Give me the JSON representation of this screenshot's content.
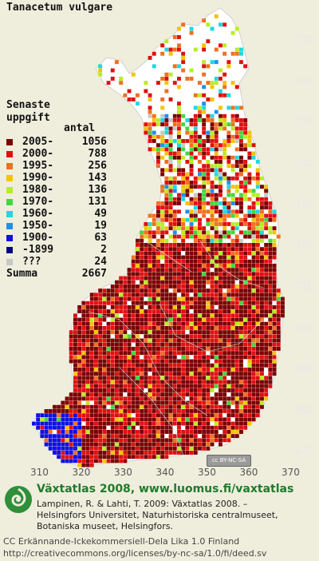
{
  "map": {
    "title": "Tanacetum vulgare",
    "legend_heading_1": "Senaste",
    "legend_heading_2": "uppgift",
    "legend_count_heading": "antal",
    "legend": [
      {
        "period": "2005-",
        "count": "1056",
        "color": "#7a0000"
      },
      {
        "period": "2000-",
        "count": "788",
        "color": "#e01010"
      },
      {
        "period": "1995-",
        "count": "256",
        "color": "#f07020"
      },
      {
        "period": "1990-",
        "count": "143",
        "color": "#f4c400"
      },
      {
        "period": "1980-",
        "count": "136",
        "color": "#b8ee20"
      },
      {
        "period": "1970-",
        "count": "131",
        "color": "#40d840"
      },
      {
        "period": "1960-",
        "count": "49",
        "color": "#20d8e0"
      },
      {
        "period": "1950-",
        "count": "19",
        "color": "#2090f0"
      },
      {
        "period": "1900-",
        "count": "63",
        "color": "#1010e0"
      },
      {
        "period": "-1899",
        "count": "2",
        "color": "#000080"
      },
      {
        "period": "???",
        "count": "24",
        "color": "#c8c8c8"
      }
    ],
    "summa_label": "Summa",
    "summa_count": "2667",
    "y_ticks": [
      "770",
      "760",
      "750",
      "740",
      "730",
      "720",
      "710",
      "700",
      "690",
      "680",
      "670"
    ],
    "x_ticks": [
      "310",
      "320",
      "330",
      "340",
      "350",
      "360",
      "370"
    ],
    "cc_badge": "BY-NC-SA",
    "cc_badge_sign": "cc"
  },
  "footer": {
    "title": "Växtatlas 2008, www.luomus.fi/vaxtatlas",
    "citation_1": "Lampinen, R. & Lahti, T. 2009: Växtatlas 2008. –",
    "citation_2": "Helsingfors Universitet, Naturhistoriska centralmuseet,",
    "citation_3": "Botaniska museet, Helsingfors.",
    "license_1": "CC Erkännande-Ickekommersiell-Dela Lika 1.0 Finland",
    "license_2": "http://creativecommons.org/licenses/by-nc-sa/1.0/fi/deed.sv"
  }
}
